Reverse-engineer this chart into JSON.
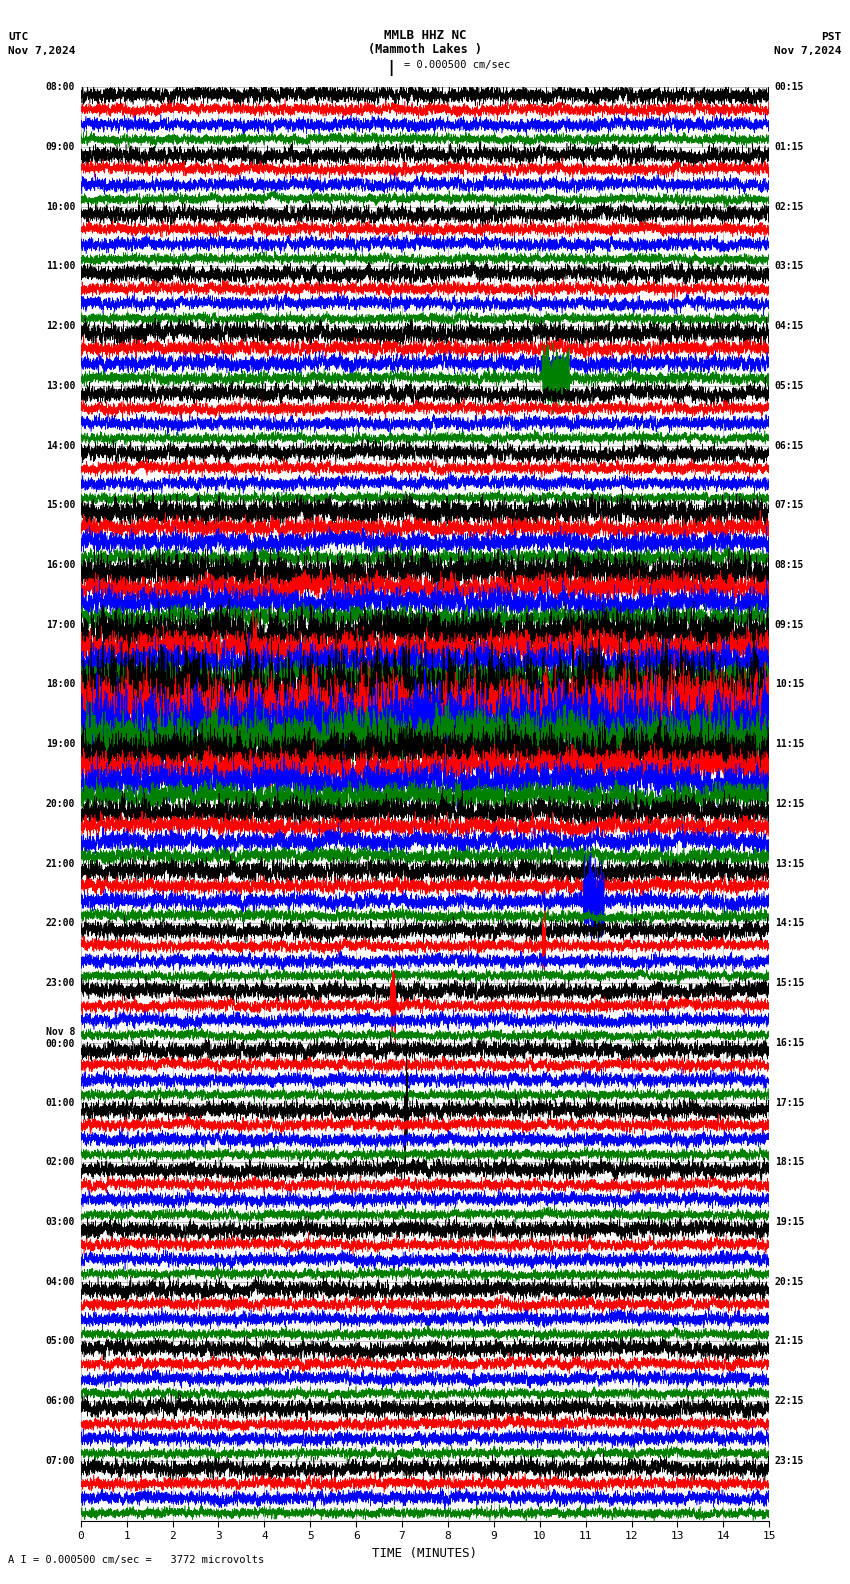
{
  "title_line1": "MMLB HHZ NC",
  "title_line2": "(Mammoth Lakes )",
  "scale_text": "= 0.000500 cm/sec",
  "top_left": "UTC",
  "top_left2": "Nov 7,2024",
  "top_right": "PST",
  "top_right2": "Nov 7,2024",
  "bottom_label": "TIME (MINUTES)",
  "bottom_note": "A I = 0.000500 cm/sec =   3772 microvolts",
  "utc_labels": [
    "08:00",
    "09:00",
    "10:00",
    "11:00",
    "12:00",
    "13:00",
    "14:00",
    "15:00",
    "16:00",
    "17:00",
    "18:00",
    "19:00",
    "20:00",
    "21:00",
    "22:00",
    "23:00",
    "Nov 8\n00:00",
    "01:00",
    "02:00",
    "03:00",
    "04:00",
    "05:00",
    "06:00",
    "07:00"
  ],
  "pst_labels": [
    "00:15",
    "01:15",
    "02:15",
    "03:15",
    "04:15",
    "05:15",
    "06:15",
    "07:15",
    "08:15",
    "09:15",
    "10:15",
    "11:15",
    "12:15",
    "13:15",
    "14:15",
    "15:15",
    "16:15",
    "17:15",
    "18:15",
    "19:15",
    "20:15",
    "21:15",
    "22:15",
    "23:15"
  ],
  "trace_colors": [
    "black",
    "red",
    "blue",
    "green"
  ],
  "n_rows": 24,
  "traces_per_row": 4,
  "xmin": 0,
  "xmax": 15,
  "bg_color": "white",
  "grid_color": "#888888",
  "fig_width": 8.5,
  "fig_height": 15.84,
  "dpi": 100,
  "row_amplitude_multipliers": [
    1.0,
    1.0,
    1.0,
    1.0,
    1.2,
    1.0,
    1.0,
    1.5,
    2.0,
    2.5,
    5.0,
    2.5,
    1.5,
    1.2,
    1.0,
    1.0,
    1.0,
    1.0,
    1.0,
    1.0,
    1.0,
    1.0,
    1.0,
    1.0
  ]
}
